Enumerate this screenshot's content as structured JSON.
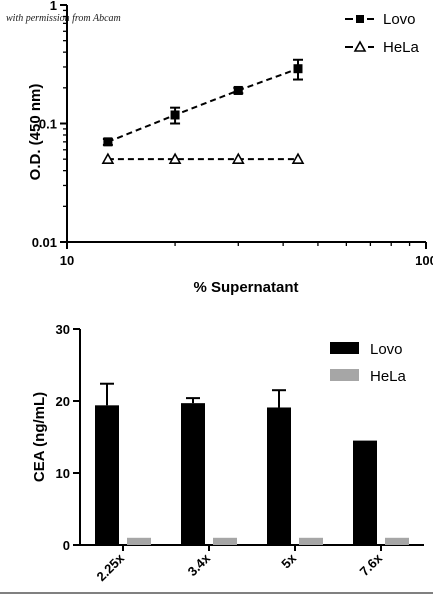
{
  "watermark": "with permission from Abcam",
  "chart_data": [
    {
      "type": "line",
      "xlabel": "% Supernatant",
      "ylabel": "O.D. (450 nm)",
      "xscale": "log",
      "yscale": "log",
      "xlim": [
        10,
        100
      ],
      "ylim": [
        0.01,
        1
      ],
      "x_ticks": [
        "10",
        "100"
      ],
      "y_ticks": [
        "0.01",
        "0.1",
        "1"
      ],
      "legend_position": "top-right",
      "series": [
        {
          "name": "Lovo",
          "marker": "filled-square",
          "line": "dashed",
          "x": [
            13,
            20,
            30,
            44
          ],
          "y": [
            0.07,
            0.118,
            0.19,
            0.29
          ],
          "error": [
            0.004,
            0.018,
            0.01,
            0.055
          ]
        },
        {
          "name": "HeLa",
          "marker": "open-triangle",
          "line": "dashed",
          "x": [
            13,
            20,
            30,
            44
          ],
          "y": [
            0.05,
            0.05,
            0.05,
            0.05
          ],
          "error": [
            0,
            0,
            0,
            0
          ]
        }
      ]
    },
    {
      "type": "bar",
      "ylabel": "CEA (ng/mL)",
      "ylim": [
        0,
        30
      ],
      "y_ticks": [
        "0",
        "10",
        "20",
        "30"
      ],
      "categories": [
        "2.25x",
        "3.4x",
        "5x",
        "7.6x"
      ],
      "legend_position": "top-right",
      "series": [
        {
          "name": "Lovo",
          "color": "#000000",
          "values": [
            19.4,
            19.7,
            19.1,
            14.5
          ],
          "error": [
            3.0,
            0.7,
            2.4,
            0
          ]
        },
        {
          "name": "HeLa",
          "color": "#a6a6a6",
          "values": [
            1.0,
            1.0,
            1.0,
            1.0
          ],
          "error": [
            0,
            0,
            0,
            0
          ]
        }
      ]
    }
  ]
}
